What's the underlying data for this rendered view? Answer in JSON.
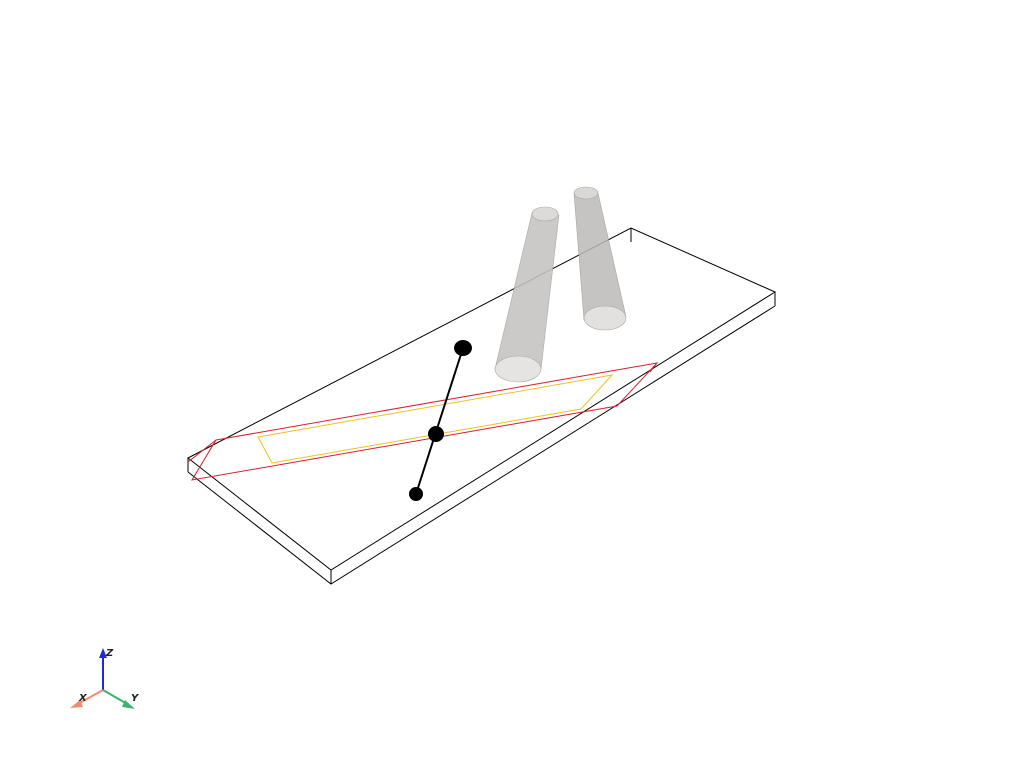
{
  "scene": {
    "background": "#ffffff",
    "colors": {
      "box_outline": "#000000",
      "red_outline": "#d61f2b",
      "yellow_outline": "#f0c020",
      "cone_fill": "#c9c6c4",
      "cone_stroke": "#9a9896",
      "marker_fill": "#000000"
    }
  },
  "orientation_axes": {
    "x": {
      "label": "X",
      "color": "#f08c6c"
    },
    "y": {
      "label": "Y",
      "color": "#3cb371"
    },
    "z": {
      "label": "Z",
      "color": "#1e2ad6"
    }
  }
}
